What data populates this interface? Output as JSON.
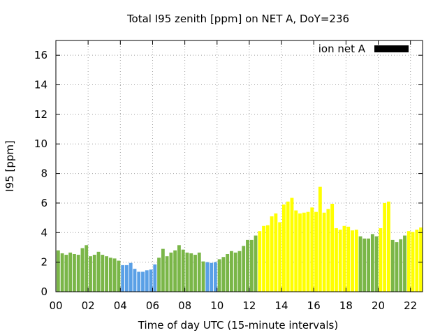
{
  "chart_data": {
    "type": "bar",
    "title": "Total I95 zenith [ppm] on NET A, DoY=236",
    "xlabel": "Time of day UTC (15-minute intervals)",
    "ylabel": "I95 [ppm]",
    "xlim": [
      0,
      22.75
    ],
    "ylim": [
      0,
      17
    ],
    "x_ticks": [
      "00",
      "02",
      "04",
      "06",
      "08",
      "10",
      "12",
      "14",
      "16",
      "18",
      "20",
      "22"
    ],
    "y_ticks": [
      "0",
      "2",
      "4",
      "6",
      "8",
      "10",
      "12",
      "14",
      "16"
    ],
    "grid": true,
    "legend": {
      "label": "ion net A",
      "position": "top-right",
      "color": "#000000"
    },
    "colors": {
      "green": "#7ab648",
      "blue": "#5aa0e6",
      "yellow": "#ffff00"
    },
    "bar_width_hours": 0.21,
    "bars": [
      {
        "x": 0.25,
        "value": 2.8,
        "color": "green"
      },
      {
        "x": 0.5,
        "value": 2.6,
        "color": "green"
      },
      {
        "x": 0.75,
        "value": 2.5,
        "color": "green"
      },
      {
        "x": 1.0,
        "value": 2.65,
        "color": "green"
      },
      {
        "x": 1.25,
        "value": 2.55,
        "color": "green"
      },
      {
        "x": 1.5,
        "value": 2.5,
        "color": "green"
      },
      {
        "x": 1.75,
        "value": 2.95,
        "color": "green"
      },
      {
        "x": 2.0,
        "value": 3.15,
        "color": "green"
      },
      {
        "x": 2.25,
        "value": 2.4,
        "color": "green"
      },
      {
        "x": 2.5,
        "value": 2.5,
        "color": "green"
      },
      {
        "x": 2.75,
        "value": 2.7,
        "color": "green"
      },
      {
        "x": 3.0,
        "value": 2.5,
        "color": "green"
      },
      {
        "x": 3.25,
        "value": 2.4,
        "color": "green"
      },
      {
        "x": 3.5,
        "value": 2.3,
        "color": "green"
      },
      {
        "x": 3.75,
        "value": 2.25,
        "color": "green"
      },
      {
        "x": 4.0,
        "value": 2.1,
        "color": "green"
      },
      {
        "x": 4.25,
        "value": 1.8,
        "color": "blue"
      },
      {
        "x": 4.5,
        "value": 1.8,
        "color": "blue"
      },
      {
        "x": 4.75,
        "value": 1.95,
        "color": "blue"
      },
      {
        "x": 5.0,
        "value": 1.55,
        "color": "blue"
      },
      {
        "x": 5.25,
        "value": 1.35,
        "color": "blue"
      },
      {
        "x": 5.5,
        "value": 1.35,
        "color": "blue"
      },
      {
        "x": 5.75,
        "value": 1.45,
        "color": "blue"
      },
      {
        "x": 6.0,
        "value": 1.5,
        "color": "blue"
      },
      {
        "x": 6.25,
        "value": 1.85,
        "color": "blue"
      },
      {
        "x": 6.5,
        "value": 2.3,
        "color": "green"
      },
      {
        "x": 6.75,
        "value": 2.9,
        "color": "green"
      },
      {
        "x": 7.0,
        "value": 2.4,
        "color": "green"
      },
      {
        "x": 7.25,
        "value": 2.65,
        "color": "green"
      },
      {
        "x": 7.5,
        "value": 2.8,
        "color": "green"
      },
      {
        "x": 7.75,
        "value": 3.15,
        "color": "green"
      },
      {
        "x": 8.0,
        "value": 2.85,
        "color": "green"
      },
      {
        "x": 8.25,
        "value": 2.65,
        "color": "green"
      },
      {
        "x": 8.5,
        "value": 2.6,
        "color": "green"
      },
      {
        "x": 8.75,
        "value": 2.5,
        "color": "green"
      },
      {
        "x": 9.0,
        "value": 2.65,
        "color": "green"
      },
      {
        "x": 9.25,
        "value": 2.05,
        "color": "green"
      },
      {
        "x": 9.5,
        "value": 2.0,
        "color": "blue"
      },
      {
        "x": 9.75,
        "value": 1.95,
        "color": "blue"
      },
      {
        "x": 10.0,
        "value": 2.0,
        "color": "blue"
      },
      {
        "x": 10.25,
        "value": 2.2,
        "color": "green"
      },
      {
        "x": 10.5,
        "value": 2.35,
        "color": "green"
      },
      {
        "x": 10.75,
        "value": 2.55,
        "color": "green"
      },
      {
        "x": 11.0,
        "value": 2.75,
        "color": "green"
      },
      {
        "x": 11.25,
        "value": 2.65,
        "color": "green"
      },
      {
        "x": 11.5,
        "value": 2.75,
        "color": "green"
      },
      {
        "x": 11.75,
        "value": 3.1,
        "color": "green"
      },
      {
        "x": 12.0,
        "value": 3.5,
        "color": "green"
      },
      {
        "x": 12.25,
        "value": 3.5,
        "color": "green"
      },
      {
        "x": 12.5,
        "value": 3.8,
        "color": "green"
      },
      {
        "x": 12.75,
        "value": 4.1,
        "color": "yellow"
      },
      {
        "x": 13.0,
        "value": 4.45,
        "color": "yellow"
      },
      {
        "x": 13.25,
        "value": 4.5,
        "color": "yellow"
      },
      {
        "x": 13.5,
        "value": 5.1,
        "color": "yellow"
      },
      {
        "x": 13.75,
        "value": 5.3,
        "color": "yellow"
      },
      {
        "x": 14.0,
        "value": 4.7,
        "color": "yellow"
      },
      {
        "x": 14.25,
        "value": 5.9,
        "color": "yellow"
      },
      {
        "x": 14.5,
        "value": 6.1,
        "color": "yellow"
      },
      {
        "x": 14.75,
        "value": 6.35,
        "color": "yellow"
      },
      {
        "x": 15.0,
        "value": 5.5,
        "color": "yellow"
      },
      {
        "x": 15.25,
        "value": 5.3,
        "color": "yellow"
      },
      {
        "x": 15.5,
        "value": 5.35,
        "color": "yellow"
      },
      {
        "x": 15.75,
        "value": 5.4,
        "color": "yellow"
      },
      {
        "x": 16.0,
        "value": 5.7,
        "color": "yellow"
      },
      {
        "x": 16.25,
        "value": 5.4,
        "color": "yellow"
      },
      {
        "x": 16.5,
        "value": 7.1,
        "color": "yellow"
      },
      {
        "x": 16.75,
        "value": 5.35,
        "color": "yellow"
      },
      {
        "x": 17.0,
        "value": 5.6,
        "color": "yellow"
      },
      {
        "x": 17.25,
        "value": 5.95,
        "color": "yellow"
      },
      {
        "x": 17.5,
        "value": 4.3,
        "color": "yellow"
      },
      {
        "x": 17.75,
        "value": 4.2,
        "color": "yellow"
      },
      {
        "x": 18.0,
        "value": 4.45,
        "color": "yellow"
      },
      {
        "x": 18.25,
        "value": 4.4,
        "color": "yellow"
      },
      {
        "x": 18.5,
        "value": 4.15,
        "color": "yellow"
      },
      {
        "x": 18.75,
        "value": 4.2,
        "color": "yellow"
      },
      {
        "x": 19.0,
        "value": 3.75,
        "color": "green"
      },
      {
        "x": 19.25,
        "value": 3.6,
        "color": "green"
      },
      {
        "x": 19.5,
        "value": 3.6,
        "color": "green"
      },
      {
        "x": 19.75,
        "value": 3.9,
        "color": "green"
      },
      {
        "x": 20.0,
        "value": 3.75,
        "color": "green"
      },
      {
        "x": 20.25,
        "value": 4.3,
        "color": "yellow"
      },
      {
        "x": 20.5,
        "value": 6.0,
        "color": "yellow"
      },
      {
        "x": 20.75,
        "value": 6.1,
        "color": "yellow"
      },
      {
        "x": 21.0,
        "value": 3.5,
        "color": "green"
      },
      {
        "x": 21.25,
        "value": 3.35,
        "color": "green"
      },
      {
        "x": 21.5,
        "value": 3.55,
        "color": "green"
      },
      {
        "x": 21.75,
        "value": 3.8,
        "color": "green"
      },
      {
        "x": 22.0,
        "value": 4.1,
        "color": "yellow"
      },
      {
        "x": 22.25,
        "value": 4.05,
        "color": "yellow"
      },
      {
        "x": 22.5,
        "value": 4.2,
        "color": "yellow"
      },
      {
        "x": 22.75,
        "value": 4.35,
        "color": "yellow"
      }
    ]
  }
}
